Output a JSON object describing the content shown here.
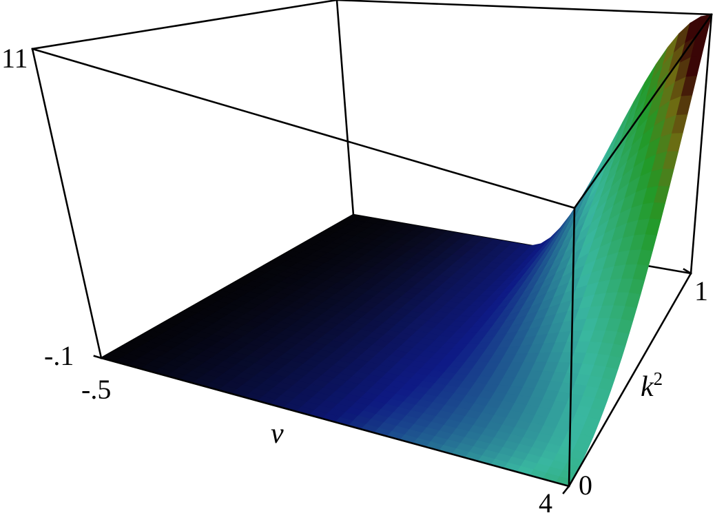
{
  "chart_data": {
    "type": "surface",
    "title": "",
    "axes": {
      "x": {
        "label": "ν",
        "range": [
          -0.5,
          4
        ],
        "tick_labels": [
          "-.5",
          "4"
        ]
      },
      "y": {
        "label_base": "k",
        "label_exponent": "2",
        "range": [
          0,
          1
        ],
        "tick_labels": [
          "0",
          "1"
        ]
      },
      "z": {
        "label": "",
        "range": [
          -0.1,
          11
        ],
        "tick_labels": [
          "-.1",
          "11"
        ]
      }
    },
    "corner_values": [
      {
        "nu": -0.5,
        "k2": 0,
        "z": -0.1
      },
      {
        "nu": 4,
        "k2": 0,
        "z": -0.1
      },
      {
        "nu": -0.5,
        "k2": 1,
        "z": -0.1
      },
      {
        "nu": 4,
        "k2": 1,
        "z": 11
      }
    ],
    "colormap": {
      "low": "#0a0a16",
      "blue": "#0e1a86",
      "teal": "#39b7a0",
      "green": "#229926",
      "olive": "#6f6a12",
      "high": "#3a0606"
    },
    "grid": false,
    "legend": "none"
  }
}
